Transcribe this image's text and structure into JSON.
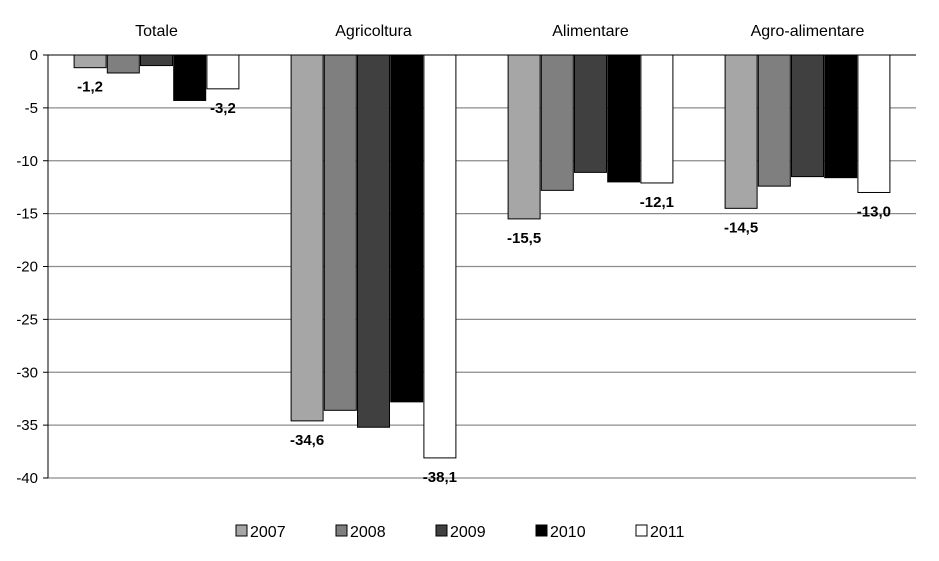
{
  "chart_data": {
    "type": "bar",
    "categories": [
      "Totale",
      "Agricoltura",
      "Alimentare",
      "Agro-alimentare"
    ],
    "series": [
      {
        "name": "2007",
        "values": [
          -1.2,
          -34.6,
          -15.5,
          -14.5
        ],
        "color": "#a6a6a6"
      },
      {
        "name": "2008",
        "values": [
          -1.7,
          -33.6,
          -12.8,
          -12.4
        ],
        "color": "#7f7f7f"
      },
      {
        "name": "2009",
        "values": [
          -1.0,
          -35.2,
          -11.1,
          -11.5
        ],
        "color": "#404040"
      },
      {
        "name": "2010",
        "values": [
          -4.3,
          -32.8,
          -12.0,
          -11.6
        ],
        "color": "#000000"
      },
      {
        "name": "2011",
        "values": [
          -3.2,
          -38.1,
          -12.1,
          -13.0
        ],
        "color": "#ffffff"
      }
    ],
    "data_labels": [
      {
        "category": 0,
        "series": 0,
        "text": "-1,2"
      },
      {
        "category": 0,
        "series": 4,
        "text": "-3,2"
      },
      {
        "category": 1,
        "series": 0,
        "text": "-34,6"
      },
      {
        "category": 1,
        "series": 4,
        "text": "-38,1"
      },
      {
        "category": 2,
        "series": 0,
        "text": "-15,5"
      },
      {
        "category": 2,
        "series": 4,
        "text": "-12,1"
      },
      {
        "category": 3,
        "series": 0,
        "text": "-14,5"
      },
      {
        "category": 3,
        "series": 4,
        "text": "-13,0"
      }
    ],
    "y_ticks": [
      0,
      -5,
      -10,
      -15,
      -20,
      -25,
      -30,
      -35,
      -40
    ],
    "ylim": [
      -40,
      0
    ],
    "grid": true,
    "category_labels_position": "top",
    "legend_position": "bottom"
  }
}
